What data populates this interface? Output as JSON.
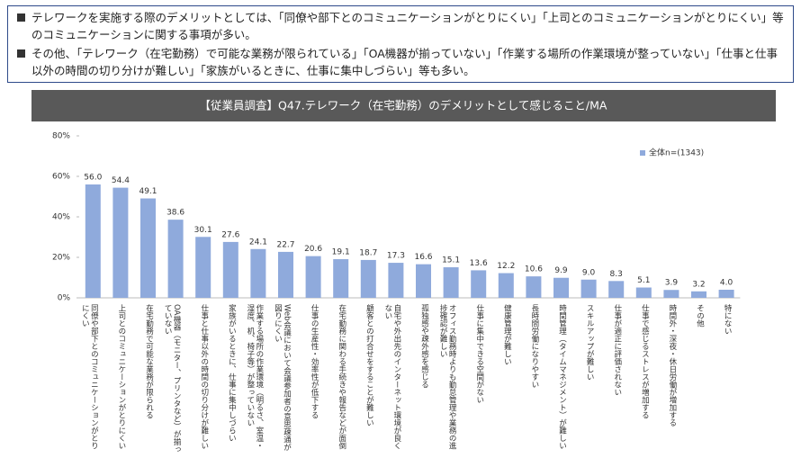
{
  "notes": [
    "テレワークを実施する際のデメリットとしては、「同僚や部下とのコミュニケーションがとりにくい」「上司とのコミュニケーションがとりにくい」等のコミュニケーションに関する事項が多い。",
    "その他、「テレワーク（在宅勤務）で可能な業務が限られている」「OA機器が揃っていない」「作業する場所の作業環境が整っていない」「仕事と仕事以外の時間の切り分けが難しい」「家族がいるときに、仕事に集中しづらい」等も多い。"
  ],
  "chart_data": {
    "type": "bar",
    "title": "【従業員調査】Q47.テレワーク（在宅勤務）のデメリットとして感じること/MA",
    "categories": [
      "同僚や部下とのコミュニケーションがとりにくい",
      "上司とのコミュニケーションがとりにくい",
      "在宅勤務で可能な業務が限られる",
      "OA機器（モニター、プリンタなど）が揃っていない",
      "仕事と仕事以外の時間の切り分けが難しい",
      "家族がいるときに、仕事に集中しづらい",
      "作業する場所の作業環境（明るさ、室温・湿度、机、椅子等）が整っていない",
      "Web会議において会議参加者の意思疎通が図りにくい",
      "仕事の生産性・効率性が低下する",
      "在宅勤務に関わる手続きや報告などが面倒",
      "顧客との打合せをすることが難しい",
      "自宅や外出先のインターネット環境が良くない",
      "孤独感や疎外感を感じる",
      "オフィス勤務時よりも勤怠管理や業務の進捗確認が難しい",
      "仕事に集中できる空間がない",
      "健康管理が難しい",
      "長時間労働になりやすい",
      "時間管理（タイムマネジメント）が難しい",
      "スキルアップが難しい",
      "仕事が適正に評価されない",
      "仕事で感じるストレスが増加する",
      "時間外・深夜・休日労働が増加する",
      "その他",
      "特にない"
    ],
    "series": [
      {
        "name": "全体n=(1343)",
        "color": "#8faadc",
        "values": [
          56.0,
          54.4,
          49.1,
          38.6,
          30.1,
          27.6,
          24.1,
          22.7,
          20.6,
          19.1,
          18.7,
          17.3,
          16.6,
          15.1,
          13.6,
          12.2,
          10.6,
          9.9,
          9.0,
          8.3,
          5.1,
          3.9,
          3.2,
          4.0
        ],
        "value_labels": [
          "56.0",
          "54.4",
          "49.1",
          "38.6",
          "30.1",
          "27.6",
          "24.1",
          "22.7",
          "20.6",
          "19.1",
          "18.7",
          "17.3",
          "16.6",
          "15.1",
          "13.6",
          "12.2",
          "10.6",
          "9.9",
          "9.0",
          "8.3",
          "5.1",
          "3.9",
          "3.2",
          "4.0"
        ]
      }
    ],
    "ylim": [
      0,
      80
    ],
    "yticks": [
      {
        "value": 0,
        "label": "0%"
      },
      {
        "value": 20,
        "label": "20%"
      },
      {
        "value": 40,
        "label": "40%"
      },
      {
        "value": 60,
        "label": "60%"
      },
      {
        "value": 80,
        "label": "80%"
      }
    ],
    "legend": "upper-right"
  }
}
